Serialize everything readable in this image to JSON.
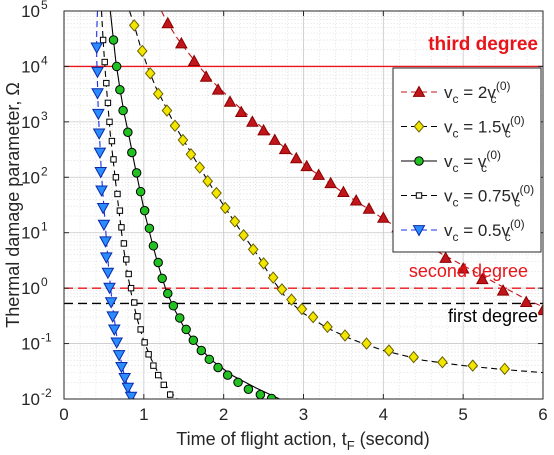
{
  "chart_data": {
    "type": "line",
    "title": "",
    "xlabel": "Time of flight action, t_F (second)",
    "ylabel": "Thermal damage parameter, Ω",
    "xlim": [
      0,
      6
    ],
    "ylim": [
      0.01,
      100000
    ],
    "yscale": "log",
    "grid": true,
    "minor_grid": true,
    "legend_position": "right",
    "x_ticks": [
      0,
      1,
      2,
      3,
      4,
      5,
      6
    ],
    "y_ticks": [
      {
        "value": 0.01,
        "base": "10",
        "exp": "-2"
      },
      {
        "value": 0.1,
        "base": "10",
        "exp": "-1"
      },
      {
        "value": 1,
        "base": "10",
        "exp": "0"
      },
      {
        "value": 10,
        "base": "10",
        "exp": "1"
      },
      {
        "value": 100,
        "base": "10",
        "exp": "2"
      },
      {
        "value": 1000,
        "base": "10",
        "exp": "3"
      },
      {
        "value": 10000,
        "base": "10",
        "exp": "4"
      },
      {
        "value": 100000,
        "base": "10",
        "exp": "5"
      }
    ],
    "thresholds": [
      {
        "label": "third degree",
        "value": 10000,
        "color": "#e8141a",
        "dash": "solid",
        "label_color": "#e8141a",
        "label_bold": true
      },
      {
        "label": "second degree",
        "value": 1,
        "color": "#e8141a",
        "dash": "dashed",
        "label_color": "#e8141a",
        "label_bold": false
      },
      {
        "label": "first degree",
        "value": 0.53,
        "color": "#000000",
        "dash": "dashed",
        "label_color": "#000000",
        "label_bold": false
      }
    ],
    "series": [
      {
        "name": "v_c = 2v_c^(0)",
        "legend_parts": {
          "pre": "v",
          "sub1": "c",
          "mid": " = 2v",
          "sub2": "c",
          "sup": "(0)"
        },
        "marker": "triangle-up",
        "line_color": "#c0161b",
        "marker_fill": "#c0161b",
        "marker_stroke": "#8b0000",
        "line_dash": "dashed",
        "points": [
          [
            1.22,
            100000
          ],
          [
            1.3,
            60000
          ],
          [
            1.42,
            32000
          ],
          [
            1.58,
            16000
          ],
          [
            1.72,
            9000
          ],
          [
            1.88,
            5000
          ],
          [
            2.05,
            2900
          ],
          [
            2.2,
            1800
          ],
          [
            2.35,
            1150
          ],
          [
            2.5,
            750
          ],
          [
            2.65,
            480
          ],
          [
            2.8,
            300
          ],
          [
            2.95,
            200
          ],
          [
            3.1,
            135
          ],
          [
            3.3,
            85
          ],
          [
            3.5,
            52
          ],
          [
            3.7,
            34
          ],
          [
            3.9,
            22
          ],
          [
            4.1,
            14.5
          ],
          [
            4.3,
            9.8
          ],
          [
            4.5,
            6.6
          ],
          [
            4.7,
            4.4
          ],
          [
            4.95,
            2.8
          ],
          [
            5.2,
            1.8
          ],
          [
            5.5,
            1.05
          ],
          [
            5.8,
            0.62
          ],
          [
            6.0,
            0.46
          ]
        ],
        "marker_points": [
          [
            1.3,
            60000
          ],
          [
            1.47,
            26000
          ],
          [
            1.63,
            12500
          ],
          [
            1.78,
            6500
          ],
          [
            1.93,
            3800
          ],
          [
            2.08,
            2300
          ],
          [
            2.22,
            1500
          ],
          [
            2.36,
            1000
          ],
          [
            2.5,
            700
          ],
          [
            2.64,
            470
          ],
          [
            2.77,
            320
          ],
          [
            2.91,
            220
          ],
          [
            3.04,
            158
          ],
          [
            3.19,
            110
          ],
          [
            3.34,
            78
          ],
          [
            3.5,
            54
          ],
          [
            3.66,
            38
          ],
          [
            3.82,
            27
          ],
          [
            4.0,
            18.5
          ],
          [
            4.18,
            12.5
          ],
          [
            4.38,
            8.3
          ],
          [
            4.57,
            5.4
          ],
          [
            4.78,
            3.5
          ],
          [
            5.0,
            2.25
          ],
          [
            5.24,
            1.45
          ],
          [
            5.5,
            0.9
          ],
          [
            5.79,
            0.56
          ],
          [
            6.0,
            0.4
          ]
        ]
      },
      {
        "name": "v_c = 1.5v_c^(0)",
        "legend_parts": {
          "pre": "v",
          "sub1": "c",
          "mid": " = 1.5v",
          "sub2": "c",
          "sup": "(0)"
        },
        "marker": "diamond",
        "line_color": "#000000",
        "marker_fill": "#f2e600",
        "marker_stroke": "#6a6000",
        "line_dash": "dashed",
        "points": [
          [
            0.82,
            100000
          ],
          [
            0.88,
            55000
          ],
          [
            0.95,
            25000
          ],
          [
            1.05,
            9500
          ],
          [
            1.15,
            4200
          ],
          [
            1.28,
            1800
          ],
          [
            1.4,
            800
          ],
          [
            1.55,
            350
          ],
          [
            1.7,
            150
          ],
          [
            1.87,
            60
          ],
          [
            2.05,
            24
          ],
          [
            2.25,
            9
          ],
          [
            2.45,
            3.5
          ],
          [
            2.6,
            1.5
          ],
          [
            2.8,
            0.62
          ],
          [
            3.0,
            0.35
          ],
          [
            3.3,
            0.19
          ],
          [
            3.6,
            0.12
          ],
          [
            4.0,
            0.075
          ],
          [
            4.5,
            0.05
          ],
          [
            5.0,
            0.04
          ],
          [
            5.5,
            0.034
          ],
          [
            6.0,
            0.03
          ]
        ],
        "marker_points": [
          [
            0.88,
            55000
          ],
          [
            0.98,
            19000
          ],
          [
            1.08,
            7500
          ],
          [
            1.18,
            3200
          ],
          [
            1.29,
            1600
          ],
          [
            1.39,
            850
          ],
          [
            1.49,
            470
          ],
          [
            1.59,
            260
          ],
          [
            1.7,
            150
          ],
          [
            1.8,
            85
          ],
          [
            1.91,
            52
          ],
          [
            2.02,
            28
          ],
          [
            2.14,
            16
          ],
          [
            2.25,
            9
          ],
          [
            2.37,
            5
          ],
          [
            2.5,
            2.8
          ],
          [
            2.62,
            1.55
          ],
          [
            2.73,
            0.95
          ],
          [
            2.85,
            0.62
          ],
          [
            2.98,
            0.42
          ],
          [
            3.12,
            0.3
          ],
          [
            3.3,
            0.2
          ],
          [
            3.52,
            0.14
          ],
          [
            3.79,
            0.1
          ],
          [
            4.07,
            0.075
          ],
          [
            4.38,
            0.057
          ],
          [
            4.74,
            0.046
          ],
          [
            5.12,
            0.04
          ],
          [
            5.52,
            0.035
          ]
        ]
      },
      {
        "name": "v_c = v_c^(0)",
        "legend_parts": {
          "pre": "v",
          "sub1": "c",
          "mid": " = v",
          "sub2": "c",
          "sup": "(0)"
        },
        "marker": "circle",
        "line_color": "#000000",
        "marker_fill": "#22c122",
        "marker_stroke": "#000000",
        "line_dash": "solid",
        "points": [
          [
            0.58,
            100000
          ],
          [
            0.61,
            40000
          ],
          [
            0.65,
            12000
          ],
          [
            0.7,
            4000
          ],
          [
            0.75,
            1500
          ],
          [
            0.82,
            500
          ],
          [
            0.88,
            180
          ],
          [
            0.95,
            60
          ],
          [
            1.02,
            20
          ],
          [
            1.1,
            7
          ],
          [
            1.18,
            2.6
          ],
          [
            1.27,
            1.0
          ],
          [
            1.37,
            0.45
          ],
          [
            1.5,
            0.2
          ],
          [
            1.65,
            0.1
          ],
          [
            1.85,
            0.05
          ],
          [
            2.1,
            0.027
          ],
          [
            2.4,
            0.016
          ],
          [
            2.7,
            0.01
          ]
        ],
        "marker_points": [
          [
            0.62,
            30000
          ],
          [
            0.66,
            10000
          ],
          [
            0.7,
            3800
          ],
          [
            0.74,
            1600
          ],
          [
            0.8,
            650
          ],
          [
            0.85,
            280
          ],
          [
            0.91,
            120
          ],
          [
            0.96,
            55
          ],
          [
            1.01,
            25
          ],
          [
            1.07,
            12
          ],
          [
            1.12,
            5.8
          ],
          [
            1.18,
            2.9
          ],
          [
            1.23,
            1.5
          ],
          [
            1.3,
            0.8
          ],
          [
            1.37,
            0.48
          ],
          [
            1.45,
            0.29
          ],
          [
            1.53,
            0.18
          ],
          [
            1.62,
            0.115
          ],
          [
            1.72,
            0.075
          ],
          [
            1.82,
            0.052
          ],
          [
            1.93,
            0.037
          ],
          [
            2.05,
            0.027
          ],
          [
            2.18,
            0.02
          ],
          [
            2.31,
            0.015
          ],
          [
            2.46,
            0.012
          ],
          [
            2.6,
            0.0102
          ]
        ]
      },
      {
        "name": "v_c = 0.75v_c^(0)",
        "legend_parts": {
          "pre": "v",
          "sub1": "c",
          "mid": " = 0.75v",
          "sub2": "c",
          "sup": "(0)"
        },
        "marker": "square",
        "line_color": "#000000",
        "marker_fill": "#ffffff",
        "marker_stroke": "#000000",
        "line_dash": "dashed",
        "points": [
          [
            0.47,
            100000
          ],
          [
            0.49,
            30000
          ],
          [
            0.52,
            7000
          ],
          [
            0.55,
            2000
          ],
          [
            0.58,
            600
          ],
          [
            0.62,
            180
          ],
          [
            0.66,
            55
          ],
          [
            0.7,
            18
          ],
          [
            0.74,
            6
          ],
          [
            0.79,
            2
          ],
          [
            0.85,
            0.7
          ],
          [
            0.92,
            0.27
          ],
          [
            1.0,
            0.11
          ],
          [
            1.1,
            0.05
          ],
          [
            1.2,
            0.026
          ],
          [
            1.32,
            0.014
          ],
          [
            1.42,
            0.01
          ]
        ],
        "marker_points": [
          [
            0.49,
            30000
          ],
          [
            0.51,
            12000
          ],
          [
            0.53,
            5000
          ],
          [
            0.55,
            2200
          ],
          [
            0.57,
            1000
          ],
          [
            0.6,
            450
          ],
          [
            0.62,
            210
          ],
          [
            0.65,
            100
          ],
          [
            0.67,
            50
          ],
          [
            0.7,
            25
          ],
          [
            0.72,
            12.5
          ],
          [
            0.75,
            6.4
          ],
          [
            0.78,
            3.3
          ],
          [
            0.81,
            1.8
          ],
          [
            0.84,
            1.0
          ],
          [
            0.88,
            0.55
          ],
          [
            0.92,
            0.31
          ],
          [
            0.96,
            0.18
          ],
          [
            1.01,
            0.105
          ],
          [
            1.06,
            0.064
          ],
          [
            1.12,
            0.04
          ],
          [
            1.18,
            0.027
          ],
          [
            1.25,
            0.018
          ],
          [
            1.33,
            0.012
          ]
        ]
      },
      {
        "name": "v_c = 0.5v_c^(0)",
        "legend_parts": {
          "pre": "v",
          "sub1": "c",
          "mid": " = 0.5v",
          "sub2": "c",
          "sup": "(0)"
        },
        "marker": "triangle-down",
        "line_color": "#1a2ee8",
        "marker_fill": "#2a8cff",
        "marker_stroke": "#0a2aa8",
        "line_dash": "dashed",
        "points": [
          [
            0.42,
            100000
          ],
          [
            0.41,
            40000
          ],
          [
            0.41,
            15000
          ],
          [
            0.42,
            5000
          ],
          [
            0.43,
            1500
          ],
          [
            0.45,
            400
          ],
          [
            0.47,
            110
          ],
          [
            0.5,
            30
          ],
          [
            0.53,
            8
          ],
          [
            0.56,
            2.2
          ],
          [
            0.6,
            0.6
          ],
          [
            0.65,
            0.17
          ],
          [
            0.7,
            0.06
          ],
          [
            0.76,
            0.025
          ],
          [
            0.83,
            0.013
          ],
          [
            0.88,
            0.01
          ]
        ],
        "marker_points": [
          [
            0.41,
            22000
          ],
          [
            0.42,
            8000
          ],
          [
            0.42,
            3300
          ],
          [
            0.43,
            1400
          ],
          [
            0.44,
            620
          ],
          [
            0.45,
            280
          ],
          [
            0.46,
            125
          ],
          [
            0.47,
            58
          ],
          [
            0.49,
            28
          ],
          [
            0.5,
            14
          ],
          [
            0.52,
            7
          ],
          [
            0.53,
            3.6
          ],
          [
            0.55,
            1.9
          ],
          [
            0.57,
            1.02
          ],
          [
            0.59,
            0.56
          ],
          [
            0.61,
            0.31
          ],
          [
            0.63,
            0.18
          ],
          [
            0.66,
            0.105
          ],
          [
            0.69,
            0.062
          ],
          [
            0.72,
            0.038
          ],
          [
            0.76,
            0.024
          ],
          [
            0.8,
            0.016
          ],
          [
            0.84,
            0.011
          ]
        ]
      }
    ]
  }
}
